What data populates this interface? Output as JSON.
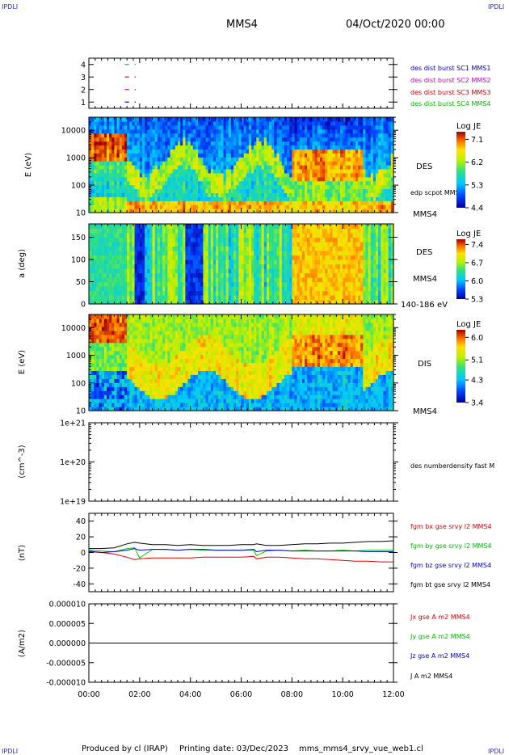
{
  "header": {
    "title": "MMS4",
    "datetime": "04/Oct/2020 00:00",
    "corner_labels": [
      "IPDLI",
      "IPDLI",
      "IPDLI",
      "IPDLI"
    ]
  },
  "footer": {
    "produced_by": "Produced by cl (IRAP)",
    "printing_date": "Printing date: 03/Dec/2023",
    "product": "mms_mms4_srvy_vue_web1.cl"
  },
  "colors": {
    "mms1": "#0000cc",
    "mms2": "#cc00cc",
    "mms3": "#cc0000",
    "mms4": "#00cc00",
    "bx": "#dd0000",
    "by": "#00cc00",
    "bz": "#0000dd",
    "bt": "#000000"
  },
  "chart_data": [
    {
      "id": "burst",
      "type": "scatter",
      "y_ticks": [
        "4",
        "3",
        "2",
        "1"
      ],
      "ylim": [
        0.5,
        4.5
      ],
      "series": [
        {
          "name": "des dist burst SC1 MMS1",
          "y": 1,
          "x_hours": [
            1.42,
            1.8
          ]
        },
        {
          "name": "des dist burst SC2 MMS2",
          "y": 2,
          "x_hours": [
            1.42,
            1.8
          ]
        },
        {
          "name": "des dist burst SC3 MMS3",
          "y": 3,
          "x_hours": [
            1.42,
            1.8
          ]
        },
        {
          "name": "des dist burst SC4 MMS4",
          "y": 4,
          "x_hours": [
            1.42,
            1.8
          ]
        }
      ]
    },
    {
      "id": "des_energy",
      "type": "heatmap",
      "ylabel": "E (eV)",
      "yscale": "log",
      "ylim": [
        10,
        30000
      ],
      "y_ticks": [
        "10000",
        "1000",
        "100",
        "10"
      ],
      "right_labels": [
        "DES",
        "edp scpot MMS4",
        "MMS4"
      ],
      "colorbar": {
        "title": "Log JE",
        "ticks": [
          "7.1",
          "6.2",
          "5.3",
          "4.4"
        ],
        "range": [
          4.4,
          7.4
        ]
      }
    },
    {
      "id": "des_pitch",
      "type": "heatmap",
      "ylabel": "a (deg)",
      "ylim": [
        0,
        180
      ],
      "y_ticks": [
        "150",
        "100",
        "50",
        "0"
      ],
      "right_labels": [
        "DES",
        "MMS4",
        "140-186 eV"
      ],
      "colorbar": {
        "title": "Log JE",
        "ticks": [
          "7.4",
          "6.7",
          "6.0",
          "5.3"
        ],
        "range": [
          5.3,
          7.6
        ]
      }
    },
    {
      "id": "dis_energy",
      "type": "heatmap",
      "ylabel": "E (eV)",
      "yscale": "log",
      "ylim": [
        10,
        30000
      ],
      "y_ticks": [
        "10000",
        "1000",
        "100",
        "10"
      ],
      "right_labels": [
        "DIS",
        "MMS4"
      ],
      "colorbar": {
        "title": "Log JE",
        "ticks": [
          "6.0",
          "5.1",
          "4.3",
          "3.4"
        ],
        "range": [
          3.4,
          6.3
        ]
      }
    },
    {
      "id": "density",
      "type": "line",
      "ylabel": "(cm^-3)",
      "yscale": "log",
      "ylim": [
        1e+19,
        1e+21
      ],
      "y_ticks": [
        "1e+21",
        "1e+20",
        "1e+19"
      ],
      "series": [
        {
          "name": "des numberdensity fast M",
          "x_hours": [],
          "y": []
        }
      ]
    },
    {
      "id": "fgm",
      "type": "line",
      "ylabel": "(nT)",
      "ylim": [
        -50,
        50
      ],
      "y_ticks": [
        "40",
        "20",
        "0",
        "-20",
        "-40"
      ],
      "x_hours": [
        0,
        0.5,
        1.0,
        1.5,
        1.8,
        2.0,
        2.5,
        3.0,
        3.5,
        4.0,
        4.5,
        5.0,
        5.5,
        6.0,
        6.5,
        6.6,
        7.0,
        7.5,
        8.0,
        8.5,
        9.0,
        9.5,
        10.0,
        10.5,
        11.0,
        11.5,
        12.0
      ],
      "series": [
        {
          "name": "fgm bx gse srvy l2 MMS4",
          "values": [
            2,
            0,
            -2,
            -6,
            -9,
            -8,
            -7,
            -7,
            -7,
            -7,
            -6,
            -6,
            -6,
            -6,
            -5,
            -8,
            -6,
            -6,
            -7,
            -8,
            -8,
            -9,
            -10,
            -11,
            -11,
            -12,
            -12
          ]
        },
        {
          "name": "fgm by gse srvy l2 MMS4",
          "values": [
            3,
            2,
            1,
            5,
            6,
            -7,
            4,
            4,
            3,
            4,
            3,
            3,
            3,
            3,
            3,
            -4,
            2,
            3,
            2,
            3,
            2,
            2,
            3,
            2,
            3,
            3,
            3
          ]
        },
        {
          "name": "fgm bz gse srvy l2 MMS4",
          "values": [
            1,
            0,
            1,
            3,
            5,
            3,
            4,
            4,
            3,
            4,
            4,
            3,
            3,
            3,
            4,
            1,
            3,
            3,
            2,
            2,
            2,
            2,
            2,
            2,
            1,
            1,
            1
          ]
        },
        {
          "name": "fgm bt gse srvy l2 MMS4",
          "values": [
            5,
            5,
            6,
            11,
            13,
            12,
            10,
            10,
            9,
            10,
            9,
            9,
            9,
            10,
            10,
            11,
            9,
            9,
            10,
            11,
            11,
            12,
            12,
            13,
            14,
            14,
            15
          ]
        }
      ]
    },
    {
      "id": "current",
      "type": "line",
      "ylabel": "(A/m2)",
      "ylim": [
        -1e-05,
        1e-05
      ],
      "y_ticks": [
        "0.000010",
        "0.000005",
        "0.000000",
        "-0.000005",
        "-0.000010"
      ],
      "x_ticks": [
        "00:00",
        "02:00",
        "04:00",
        "06:00",
        "08:00",
        "10:00",
        "12:00"
      ],
      "x_range_hours": [
        0,
        12
      ],
      "series": [
        {
          "name": "Jx gse A m2 MMS4",
          "values": [
            0
          ]
        },
        {
          "name": "Jy gse A m2 MMS4",
          "values": [
            0
          ]
        },
        {
          "name": "Jz gse A m2 MMS4",
          "values": [
            0
          ]
        },
        {
          "name": "J A m2 MMS4",
          "values": [
            0
          ]
        }
      ]
    }
  ]
}
